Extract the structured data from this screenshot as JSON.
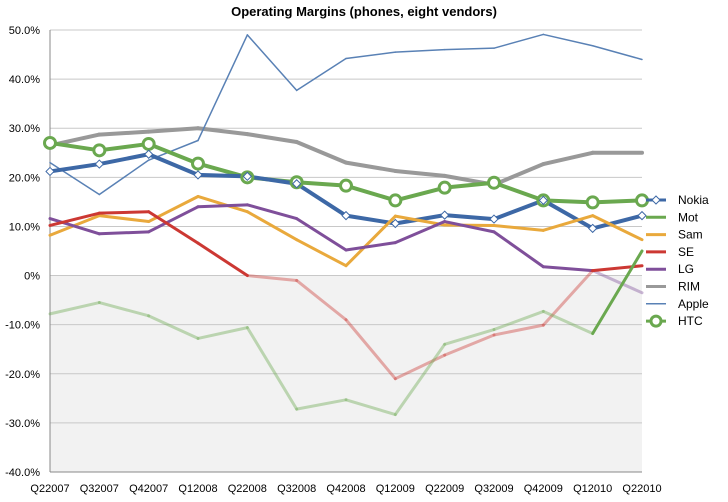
{
  "chart_data": {
    "type": "line",
    "title": "Operating Margins (phones, eight vendors)",
    "xlabel": "",
    "ylabel": "",
    "ylim": [
      -40,
      50
    ],
    "y_ticks": [
      "50.0%",
      "40.0%",
      "30.0%",
      "20.0%",
      "10.0%",
      "0%",
      "-10.0%",
      "-20.0%",
      "-30.0%",
      "-40.0%"
    ],
    "y_tick_values": [
      50,
      40,
      30,
      20,
      10,
      0,
      -10,
      -20,
      -30,
      -40
    ],
    "categories": [
      "Q22007",
      "Q32007",
      "Q42007",
      "Q12008",
      "Q22008",
      "Q32008",
      "Q42008",
      "Q12009",
      "Q22009",
      "Q32009",
      "Q42009",
      "Q12010",
      "Q22010"
    ],
    "negative_region_fill": "#f2f2f2",
    "legend_position": "right",
    "series": [
      {
        "name": "RIM",
        "color": "#999999",
        "width": 4,
        "marker": "none",
        "values": [
          26.5,
          28.7,
          29.3,
          30.0,
          28.8,
          27.2,
          23.0,
          21.3,
          20.3,
          18.5,
          22.7,
          25.0,
          25.0
        ]
      },
      {
        "name": "Apple",
        "color": "#5981b5",
        "width": 1.5,
        "marker": "none",
        "values": [
          23.0,
          16.5,
          23.5,
          27.5,
          49.0,
          37.7,
          44.2,
          45.5,
          46.0,
          46.3,
          49.1,
          46.8,
          44.0
        ]
      },
      {
        "name": "HTC",
        "color": "#6aa84f",
        "width": 4,
        "marker": "circle",
        "values": [
          27.0,
          25.5,
          26.8,
          22.8,
          20.0,
          19.0,
          18.3,
          15.3,
          17.9,
          18.9,
          15.3,
          14.9,
          15.3
        ]
      },
      {
        "name": "Nokia",
        "color": "#3d68a6",
        "width": 4,
        "marker": "diamond",
        "values": [
          21.2,
          22.7,
          24.7,
          20.5,
          20.2,
          18.7,
          12.2,
          10.6,
          12.3,
          11.5,
          15.3,
          9.6,
          12.2
        ]
      },
      {
        "name": "Sam",
        "color": "#e9a93c",
        "width": 3,
        "marker": "none",
        "values": [
          8.2,
          12.2,
          11.0,
          16.1,
          13.0,
          7.3,
          2.0,
          12.1,
          10.3,
          10.2,
          9.2,
          12.2,
          7.3
        ]
      },
      {
        "name": "LG",
        "color": "#7f4f9a",
        "width": 3,
        "marker": "none",
        "values": [
          11.6,
          8.5,
          8.9,
          14.0,
          14.4,
          11.6,
          5.2,
          6.7,
          11.0,
          8.9,
          1.8,
          1.0,
          -3.5
        ]
      },
      {
        "name": "SE",
        "color": "#cc3833",
        "width": 3,
        "marker": "none",
        "values": [
          10.2,
          12.7,
          13.0,
          6.6,
          0,
          -1.0,
          -9.0,
          -21.0,
          -16.2,
          -12.1,
          -10.1,
          1.0,
          2.0
        ]
      },
      {
        "name": "Mot",
        "color": "#6aa84f",
        "width": 3,
        "marker": "none",
        "values": [
          -7.8,
          -5.5,
          -8.2,
          -12.8,
          -10.6,
          -27.2,
          -25.3,
          -28.3,
          -14.0,
          -11.0,
          -7.3,
          -11.8,
          5.0
        ]
      }
    ],
    "legend_order": [
      "Nokia",
      "Mot",
      "Sam",
      "SE",
      "LG",
      "RIM",
      "Apple",
      "HTC"
    ]
  }
}
